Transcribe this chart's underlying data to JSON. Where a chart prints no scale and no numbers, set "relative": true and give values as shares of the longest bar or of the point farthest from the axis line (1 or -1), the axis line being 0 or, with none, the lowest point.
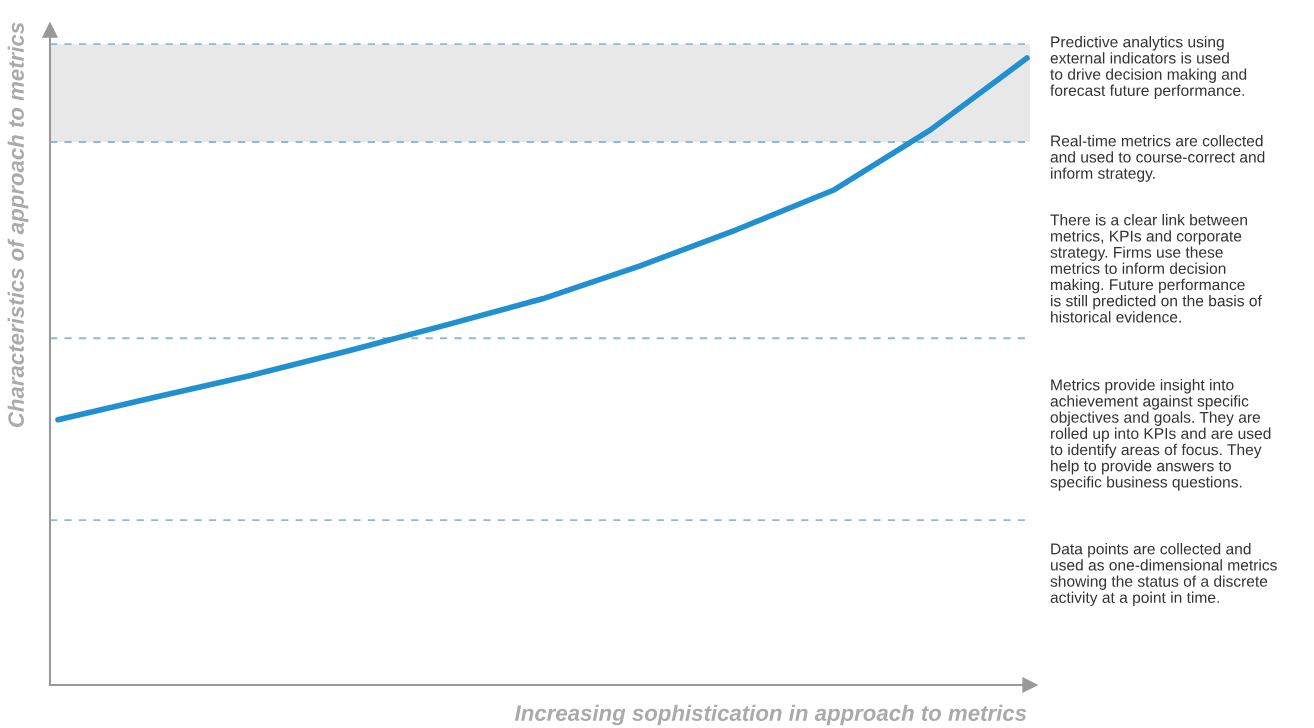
{
  "chart_data": {
    "type": "line",
    "relative": true,
    "xlabel": "Increasing sophistication in approach to metrics",
    "ylabel": "Characteristics of approach to metrics",
    "categories": [
      null,
      null,
      null,
      null,
      null,
      null,
      null,
      null,
      null,
      null,
      null
    ],
    "series": [
      {
        "color": "#2190d0",
        "values": [
          0.423,
          0.459,
          0.494,
          0.533,
          0.574,
          0.616,
          0.668,
          0.726,
          0.789,
          0.885,
          1.0
        ]
      }
    ],
    "bands": [
      {
        "axis": "y",
        "from": 0.866,
        "to": 1.022,
        "color": "#e8e8e8"
      }
    ],
    "ref_lines": [
      {
        "axis": "y",
        "value": 1.022,
        "color": "#8fb8e0",
        "line_style": "dashed"
      },
      {
        "axis": "y",
        "value": 0.866,
        "color": "#8fb8e0",
        "line_style": "dashed"
      },
      {
        "axis": "y",
        "value": 0.553,
        "color": "#8fb8e0",
        "line_style": "dashed"
      },
      {
        "axis": "y",
        "value": 0.263,
        "color": "#8fb8e0",
        "line_style": "dashed"
      }
    ],
    "annotations": [
      "Predictive analytics using\nexternal indicators is used\nto drive decision making and\nforecast future performance.",
      "Real-time metrics are collected\nand used to course-correct and\ninform strategy.",
      "There is a clear link between\nmetrics, KPIs and corporate\nstrategy. Firms use these\nmetrics to inform decision\nmaking. Future performance\nis still predicted on the basis of\nhistorical evidence.",
      "Metrics provide insight into\nachievement against specific\nobjectives and goals. They are\nrolled up into KPIs and are used\nto identify areas of focus. They\nhelp to provide answers to\nspecific business questions.",
      "Data points are collected and\nused as one-dimensional metrics\nshowing the status of a discrete\nactivity at a point in time."
    ]
  }
}
